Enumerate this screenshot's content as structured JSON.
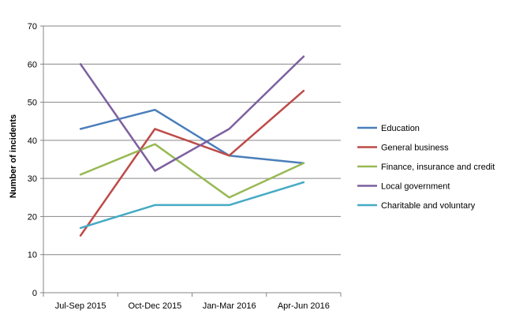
{
  "chart_data": {
    "type": "line",
    "title": "",
    "xlabel": "",
    "ylabel": "Number of incidents",
    "ylim": [
      0,
      70
    ],
    "yticks": [
      0,
      10,
      20,
      30,
      40,
      50,
      60,
      70
    ],
    "grid": true,
    "legend_position": "right",
    "categories": [
      "Jul-Sep 2015",
      "Oct-Dec 2015",
      "Jan-Mar 2016",
      "Apr-Jun 2016"
    ],
    "series": [
      {
        "name": "Education",
        "color": "#4a7ebb",
        "values": [
          43,
          48,
          36,
          34
        ]
      },
      {
        "name": "General business",
        "color": "#be4b48",
        "values": [
          15,
          43,
          36,
          53
        ]
      },
      {
        "name": "Finance, insurance and credit",
        "color": "#98b954",
        "values": [
          31,
          39,
          25,
          34
        ]
      },
      {
        "name": "Local government",
        "color": "#7d60a0",
        "values": [
          60,
          32,
          43,
          62
        ]
      },
      {
        "name": "Charitable and voluntary",
        "color": "#46aac5",
        "values": [
          17,
          23,
          23,
          29
        ]
      }
    ]
  }
}
